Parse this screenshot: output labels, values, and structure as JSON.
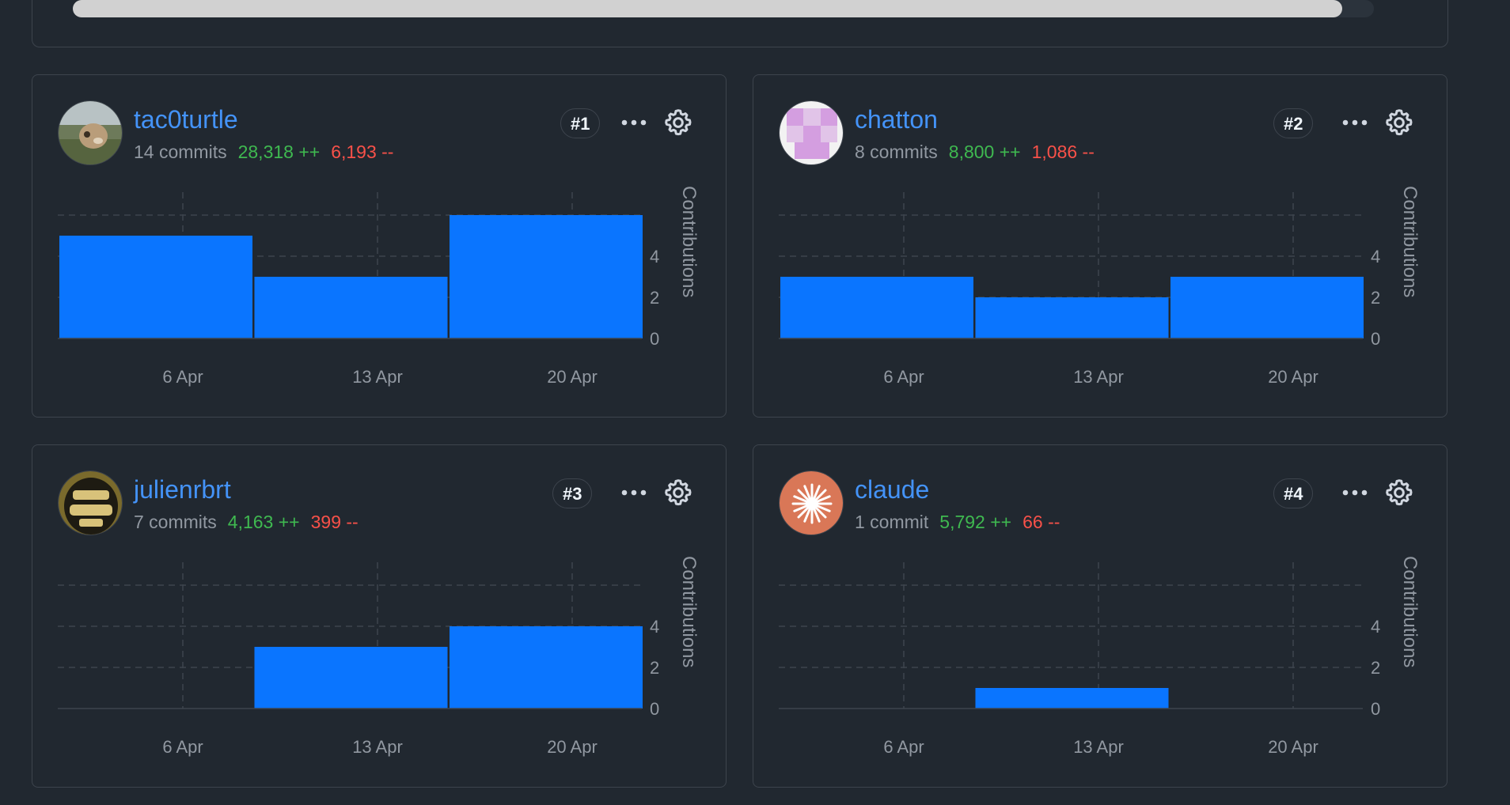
{
  "accent": "#4493f8",
  "bar_color": "#0a75ff",
  "colors": {
    "additions": "#3fb950",
    "deletions": "#f85149",
    "background": "#212830",
    "border": "#3d444d"
  },
  "icons": {
    "more": "kebab-horizontal-icon",
    "settings": "gear-icon"
  },
  "contributors": [
    {
      "username": "tac0turtle",
      "rank": "#1",
      "commits": "14 commits",
      "additions": "28,318 ++",
      "deletions": "6,193 --",
      "avatar": "photo-dog",
      "chart_data": {
        "type": "bar",
        "categories": [
          "6 Apr",
          "13 Apr",
          "20 Apr"
        ],
        "values": [
          5,
          3,
          6
        ],
        "ylabel": "Contributions",
        "yticks": [
          "0",
          "2",
          "4"
        ],
        "ylim": [
          0,
          7
        ]
      }
    },
    {
      "username": "chatton",
      "rank": "#2",
      "commits": "8 commits",
      "additions": "8,800 ++",
      "deletions": "1,086 --",
      "avatar": "identicon-pink",
      "chart_data": {
        "type": "bar",
        "categories": [
          "6 Apr",
          "13 Apr",
          "20 Apr"
        ],
        "values": [
          3,
          2,
          3
        ],
        "ylabel": "Contributions",
        "yticks": [
          "0",
          "2",
          "4"
        ],
        "ylim": [
          0,
          7
        ]
      }
    },
    {
      "username": "julienrbrt",
      "rank": "#3",
      "commits": "7 commits",
      "additions": "4,163 ++",
      "deletions": "399 --",
      "avatar": "helmet",
      "chart_data": {
        "type": "bar",
        "categories": [
          "6 Apr",
          "13 Apr",
          "20 Apr"
        ],
        "values": [
          0,
          3,
          4
        ],
        "ylabel": "Contributions",
        "yticks": [
          "0",
          "2",
          "4"
        ],
        "ylim": [
          0,
          7
        ]
      }
    },
    {
      "username": "claude",
      "rank": "#4",
      "commits": "1 commit",
      "additions": "5,792 ++",
      "deletions": "66 --",
      "avatar": "claude-burst",
      "chart_data": {
        "type": "bar",
        "categories": [
          "6 Apr",
          "13 Apr",
          "20 Apr"
        ],
        "values": [
          0,
          1,
          0
        ],
        "ylabel": "Contributions",
        "yticks": [
          "0",
          "2",
          "4"
        ],
        "ylim": [
          0,
          7
        ]
      }
    }
  ]
}
